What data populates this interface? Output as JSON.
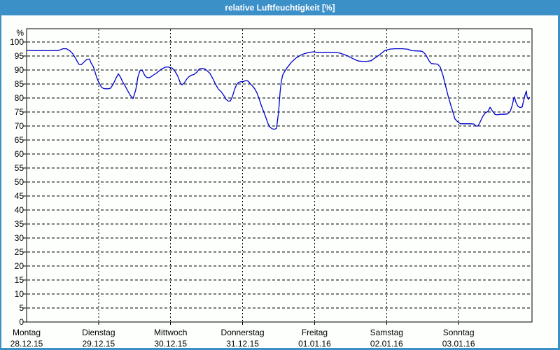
{
  "window": {
    "title": "relative Luftfeuchtigkeit [%]",
    "titlebar_color": "#3b90c8",
    "background_color": "#fdfffd"
  },
  "chart_data": {
    "type": "line",
    "title": "relative Luftfeuchtigkeit [%]",
    "ylabel": "%",
    "ylim": [
      0,
      100
    ],
    "yticks": [
      0,
      5,
      10,
      15,
      20,
      25,
      30,
      35,
      40,
      45,
      50,
      55,
      60,
      65,
      70,
      75,
      80,
      85,
      90,
      95,
      100
    ],
    "grid": true,
    "legend": "none",
    "line_color": "#0000cc",
    "grid_color": "#000000",
    "x_axis_note": "time in hours from Montag 28.12.15 00:00 to 168h (7 days)",
    "xlim": [
      0,
      168
    ],
    "x_categories": [
      {
        "day": "Montag",
        "date": "28.12.15"
      },
      {
        "day": "Dienstag",
        "date": "29.12.15"
      },
      {
        "day": "Mittwoch",
        "date": "30.12.15"
      },
      {
        "day": "Donnerstag",
        "date": "31.12.15"
      },
      {
        "day": "Freitag",
        "date": "01.01.16"
      },
      {
        "day": "Samstag",
        "date": "02.01.16"
      },
      {
        "day": "Sonntag",
        "date": "03.01.16"
      }
    ],
    "series": [
      {
        "name": "relative Luftfeuchtigkeit [%]",
        "points": [
          [
            0,
            97
          ],
          [
            2.8,
            96.9
          ],
          [
            7.5,
            96.9
          ],
          [
            10.3,
            96.9
          ],
          [
            11.2,
            97.2
          ],
          [
            12.1,
            97.6
          ],
          [
            13.3,
            97.6
          ],
          [
            14.5,
            96.8
          ],
          [
            15.4,
            95.8
          ],
          [
            16.3,
            94.2
          ],
          [
            17,
            92.8
          ],
          [
            17.5,
            92
          ],
          [
            18.2,
            91.9
          ],
          [
            19.1,
            92.8
          ],
          [
            20.1,
            93.8
          ],
          [
            21,
            93.9
          ],
          [
            21.5,
            92.5
          ],
          [
            22.2,
            91.3
          ],
          [
            22.6,
            90
          ],
          [
            23.3,
            87.5
          ],
          [
            23.8,
            86.2
          ],
          [
            24.3,
            85.2
          ],
          [
            25,
            83.8
          ],
          [
            25.7,
            83.4
          ],
          [
            26.1,
            83.3
          ],
          [
            27.3,
            83.3
          ],
          [
            28,
            83.5
          ],
          [
            28.9,
            85
          ],
          [
            29.9,
            87.3
          ],
          [
            30.6,
            88.6
          ],
          [
            31.3,
            87.5
          ],
          [
            32,
            85.8
          ],
          [
            32.7,
            84.6
          ],
          [
            33.6,
            82.8
          ],
          [
            34.5,
            81
          ],
          [
            35.5,
            79.8
          ],
          [
            36.4,
            83
          ],
          [
            37.1,
            87.5
          ],
          [
            37.8,
            89.8
          ],
          [
            38.5,
            90
          ],
          [
            39.4,
            88
          ],
          [
            40.1,
            87.3
          ],
          [
            41.1,
            87.3
          ],
          [
            42,
            88
          ],
          [
            43.4,
            89
          ],
          [
            44.8,
            90.2
          ],
          [
            46.2,
            91
          ],
          [
            47.1,
            91.1
          ],
          [
            48.5,
            90.7
          ],
          [
            49.5,
            89.5
          ],
          [
            50.4,
            87.8
          ],
          [
            51.3,
            85.2
          ],
          [
            51.8,
            84.7
          ],
          [
            52.5,
            85.3
          ],
          [
            53.4,
            86.8
          ],
          [
            54.1,
            87.6
          ],
          [
            55.1,
            88.2
          ],
          [
            55.8,
            88.4
          ],
          [
            56.7,
            89.2
          ],
          [
            57.6,
            90.4
          ],
          [
            58.6,
            90.6
          ],
          [
            59.5,
            90.3
          ],
          [
            60.4,
            89.5
          ],
          [
            61.1,
            88.8
          ],
          [
            62.1,
            86.9
          ],
          [
            63,
            84.9
          ],
          [
            63.9,
            83.2
          ],
          [
            64.9,
            82.2
          ],
          [
            65.8,
            80.8
          ],
          [
            66.5,
            79.5
          ],
          [
            67.2,
            78.9
          ],
          [
            67.9,
            78.9
          ],
          [
            68.6,
            80.5
          ],
          [
            69.3,
            83
          ],
          [
            70,
            84.8
          ],
          [
            70.7,
            85.6
          ],
          [
            71.4,
            85.8
          ],
          [
            72.3,
            85.9
          ],
          [
            73.3,
            86.3
          ],
          [
            74,
            85.9
          ],
          [
            74.7,
            84.9
          ],
          [
            75.4,
            84.2
          ],
          [
            76.1,
            83.2
          ],
          [
            76.8,
            81.8
          ],
          [
            77.5,
            79.8
          ],
          [
            78.2,
            77.5
          ],
          [
            78.9,
            75.5
          ],
          [
            79.8,
            72.9
          ],
          [
            80.5,
            70.8
          ],
          [
            81.2,
            69.5
          ],
          [
            81.9,
            69
          ],
          [
            82.6,
            68.8
          ],
          [
            83.3,
            69.2
          ],
          [
            84,
            75
          ],
          [
            84.5,
            82
          ],
          [
            84.9,
            86
          ],
          [
            85.4,
            88.3
          ],
          [
            86.1,
            89.6
          ],
          [
            86.8,
            90.8
          ],
          [
            87.5,
            91.7
          ],
          [
            88.2,
            92.7
          ],
          [
            88.9,
            93.4
          ],
          [
            89.8,
            94.3
          ],
          [
            90.8,
            94.9
          ],
          [
            91.7,
            95.5
          ],
          [
            92.9,
            95.9
          ],
          [
            93.8,
            96.2
          ],
          [
            95,
            96.4
          ],
          [
            95.7,
            96.5
          ],
          [
            96.6,
            96.3
          ],
          [
            98.5,
            96.3
          ],
          [
            100.8,
            96.3
          ],
          [
            103.1,
            96.3
          ],
          [
            104.5,
            96
          ],
          [
            105.9,
            95.5
          ],
          [
            107.1,
            95
          ],
          [
            108.5,
            94.2
          ],
          [
            109.7,
            93.6
          ],
          [
            110.6,
            93.2
          ],
          [
            112,
            93.1
          ],
          [
            113.4,
            93.1
          ],
          [
            114.8,
            93.3
          ],
          [
            116,
            94.2
          ],
          [
            117.1,
            95
          ],
          [
            118.3,
            96
          ],
          [
            119.5,
            97
          ],
          [
            120.2,
            97.2
          ],
          [
            121.3,
            97.5
          ],
          [
            123,
            97.6
          ],
          [
            125.3,
            97.6
          ],
          [
            127.2,
            97.4
          ],
          [
            128.3,
            96.9
          ],
          [
            130.4,
            96.8
          ],
          [
            131.8,
            96.7
          ],
          [
            132.8,
            95.8
          ],
          [
            133.5,
            94.6
          ],
          [
            134.2,
            93.2
          ],
          [
            134.9,
            92.3
          ],
          [
            135.8,
            92.2
          ],
          [
            137,
            92.1
          ],
          [
            137.9,
            91
          ],
          [
            138.8,
            88
          ],
          [
            139.5,
            85
          ],
          [
            140.5,
            80.8
          ],
          [
            141.6,
            76.7
          ],
          [
            142.8,
            72.5
          ],
          [
            144,
            71.2
          ],
          [
            144.7,
            70.8
          ],
          [
            146.3,
            70.8
          ],
          [
            147.9,
            70.8
          ],
          [
            149.1,
            70.7
          ],
          [
            149.8,
            70
          ],
          [
            150.5,
            70
          ],
          [
            151.2,
            71.5
          ],
          [
            152.1,
            73.5
          ],
          [
            152.8,
            74.6
          ],
          [
            153.8,
            75.2
          ],
          [
            154.5,
            76.7
          ],
          [
            155.2,
            75.5
          ],
          [
            156.1,
            74.2
          ],
          [
            156.8,
            74
          ],
          [
            158,
            74.2
          ],
          [
            159.1,
            74.2
          ],
          [
            160.3,
            74.3
          ],
          [
            161.2,
            75.2
          ],
          [
            161.9,
            77.5
          ],
          [
            162.4,
            80
          ],
          [
            162.6,
            80.4
          ],
          [
            163.1,
            78.5
          ],
          [
            163.8,
            77
          ],
          [
            164.5,
            76.6
          ],
          [
            165.2,
            76.8
          ],
          [
            165.7,
            79.2
          ],
          [
            166.1,
            81
          ],
          [
            166.6,
            82.5
          ],
          [
            166.8,
            80.5
          ],
          [
            167.3,
            79.5
          ],
          [
            167.7,
            80.3
          ]
        ]
      }
    ]
  }
}
